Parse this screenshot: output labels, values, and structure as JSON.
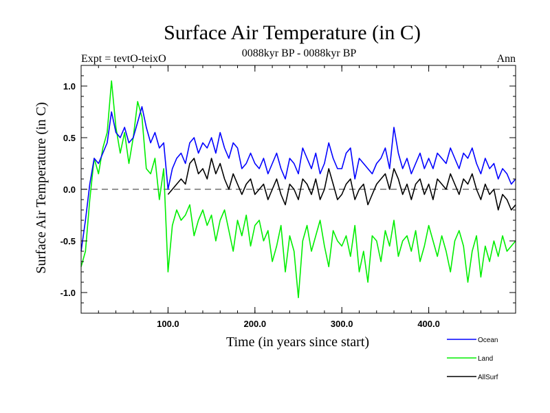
{
  "chart_data": {
    "type": "line",
    "title": "Surface Air Temperature (in C)",
    "subtitle": "0088kyr BP - 0088kyr BP",
    "expt_label": "Expt = tevtO-teixO",
    "period_label": "Ann",
    "xlabel": "Time (in years since start)",
    "ylabel": "Surface Air Temperature (in C)",
    "xlim": [
      0,
      500
    ],
    "ylim": [
      -1.2,
      1.2
    ],
    "x_ticks": [
      100,
      200,
      300,
      400
    ],
    "x_tick_labels": [
      "100.0",
      "200.0",
      "300.0",
      "400.0"
    ],
    "y_ticks": [
      -1.0,
      -0.5,
      0.0,
      0.5,
      1.0
    ],
    "y_tick_labels": [
      "-1.0",
      "-0.5",
      "0.0",
      "0.5",
      "1.0"
    ],
    "zero_line": "dashed",
    "grid": false,
    "legend_position": "bottom-right",
    "series": [
      {
        "name": "Ocean",
        "color": "#0000ff",
        "x": [
          0,
          5,
          10,
          15,
          20,
          25,
          30,
          35,
          40,
          45,
          50,
          55,
          60,
          65,
          70,
          75,
          80,
          85,
          90,
          95,
          100,
          105,
          110,
          115,
          120,
          125,
          130,
          135,
          140,
          145,
          150,
          155,
          160,
          165,
          170,
          175,
          180,
          185,
          190,
          195,
          200,
          205,
          210,
          215,
          220,
          225,
          230,
          235,
          240,
          245,
          250,
          255,
          260,
          265,
          270,
          275,
          280,
          285,
          290,
          295,
          300,
          305,
          310,
          315,
          320,
          325,
          330,
          335,
          340,
          345,
          350,
          355,
          360,
          365,
          370,
          375,
          380,
          385,
          390,
          395,
          400,
          405,
          410,
          415,
          420,
          425,
          430,
          435,
          440,
          445,
          450,
          455,
          460,
          465,
          470,
          475,
          480,
          485,
          490,
          495,
          500
        ],
        "values": [
          -0.6,
          -0.3,
          0.05,
          0.3,
          0.25,
          0.35,
          0.45,
          0.75,
          0.55,
          0.5,
          0.6,
          0.45,
          0.5,
          0.65,
          0.8,
          0.6,
          0.45,
          0.55,
          0.4,
          0.45,
          0.0,
          0.2,
          0.3,
          0.35,
          0.25,
          0.45,
          0.5,
          0.35,
          0.45,
          0.4,
          0.5,
          0.35,
          0.55,
          0.4,
          0.3,
          0.45,
          0.4,
          0.2,
          0.25,
          0.35,
          0.25,
          0.2,
          0.3,
          0.15,
          0.25,
          0.35,
          0.2,
          0.1,
          0.3,
          0.25,
          0.15,
          0.4,
          0.3,
          0.2,
          0.35,
          0.15,
          0.25,
          0.45,
          0.3,
          0.2,
          0.2,
          0.35,
          0.4,
          0.1,
          0.3,
          0.25,
          0.2,
          0.15,
          0.25,
          0.3,
          0.4,
          0.2,
          0.6,
          0.35,
          0.2,
          0.3,
          0.15,
          0.25,
          0.35,
          0.2,
          0.3,
          0.2,
          0.35,
          0.3,
          0.25,
          0.4,
          0.3,
          0.2,
          0.35,
          0.3,
          0.4,
          0.25,
          0.15,
          0.3,
          0.2,
          0.25,
          0.1,
          0.2,
          0.15,
          0.05,
          0.1
        ]
      },
      {
        "name": "Land",
        "color": "#00ee00",
        "x": [
          0,
          5,
          10,
          15,
          20,
          25,
          30,
          35,
          40,
          45,
          50,
          55,
          60,
          65,
          70,
          75,
          80,
          85,
          90,
          95,
          100,
          105,
          110,
          115,
          120,
          125,
          130,
          135,
          140,
          145,
          150,
          155,
          160,
          165,
          170,
          175,
          180,
          185,
          190,
          195,
          200,
          205,
          210,
          215,
          220,
          225,
          230,
          235,
          240,
          245,
          250,
          255,
          260,
          265,
          270,
          275,
          280,
          285,
          290,
          295,
          300,
          305,
          310,
          315,
          320,
          325,
          330,
          335,
          340,
          345,
          350,
          355,
          360,
          365,
          370,
          375,
          380,
          385,
          390,
          395,
          400,
          405,
          410,
          415,
          420,
          425,
          430,
          435,
          440,
          445,
          450,
          455,
          460,
          465,
          470,
          475,
          480,
          485,
          490,
          495,
          500
        ],
        "values": [
          -0.75,
          -0.6,
          -0.1,
          0.3,
          0.15,
          0.4,
          0.55,
          1.05,
          0.6,
          0.35,
          0.55,
          0.25,
          0.5,
          0.85,
          0.7,
          0.2,
          0.15,
          0.3,
          -0.1,
          0.2,
          -0.8,
          -0.35,
          -0.2,
          -0.3,
          -0.25,
          -0.15,
          -0.45,
          -0.3,
          -0.2,
          -0.35,
          -0.25,
          -0.5,
          -0.3,
          -0.2,
          -0.4,
          -0.6,
          -0.3,
          -0.45,
          -0.25,
          -0.55,
          -0.35,
          -0.3,
          -0.5,
          -0.4,
          -0.7,
          -0.55,
          -0.35,
          -0.8,
          -0.45,
          -0.6,
          -1.05,
          -0.5,
          -0.35,
          -0.6,
          -0.45,
          -0.3,
          -0.55,
          -0.75,
          -0.4,
          -0.5,
          -0.55,
          -0.45,
          -0.65,
          -0.35,
          -0.8,
          -0.6,
          -0.9,
          -0.45,
          -0.5,
          -0.7,
          -0.4,
          -0.55,
          -0.3,
          -0.65,
          -0.5,
          -0.45,
          -0.6,
          -0.4,
          -0.7,
          -0.55,
          -0.35,
          -0.5,
          -0.65,
          -0.45,
          -0.6,
          -0.8,
          -0.5,
          -0.4,
          -0.55,
          -0.9,
          -0.6,
          -0.45,
          -0.85,
          -0.55,
          -0.7,
          -0.5,
          -0.65,
          -0.45,
          -0.6,
          -0.55,
          -0.5
        ]
      },
      {
        "name": "AllSurf",
        "color": "#000000",
        "x": [
          100,
          105,
          110,
          115,
          120,
          125,
          130,
          135,
          140,
          145,
          150,
          155,
          160,
          165,
          170,
          175,
          180,
          185,
          190,
          195,
          200,
          205,
          210,
          215,
          220,
          225,
          230,
          235,
          240,
          245,
          250,
          255,
          260,
          265,
          270,
          275,
          280,
          285,
          290,
          295,
          300,
          305,
          310,
          315,
          320,
          325,
          330,
          335,
          340,
          345,
          350,
          355,
          360,
          365,
          370,
          375,
          380,
          385,
          390,
          395,
          400,
          405,
          410,
          415,
          420,
          425,
          430,
          435,
          440,
          445,
          450,
          455,
          460,
          465,
          470,
          475,
          480,
          485,
          490,
          495,
          500
        ],
        "values": [
          -0.05,
          0.0,
          0.05,
          0.1,
          0.05,
          0.25,
          0.3,
          0.15,
          0.2,
          0.1,
          0.3,
          0.15,
          0.25,
          0.1,
          0.0,
          0.15,
          0.05,
          -0.05,
          0.05,
          0.1,
          -0.05,
          0.0,
          0.05,
          -0.1,
          0.0,
          0.1,
          -0.05,
          -0.15,
          0.05,
          0.0,
          -0.1,
          0.1,
          0.05,
          -0.05,
          0.1,
          -0.1,
          0.0,
          0.2,
          0.05,
          -0.1,
          -0.05,
          0.05,
          0.1,
          -0.1,
          0.0,
          0.05,
          -0.15,
          -0.05,
          0.05,
          0.1,
          0.15,
          0.0,
          0.2,
          0.1,
          -0.05,
          0.05,
          -0.1,
          0.05,
          0.1,
          -0.05,
          0.05,
          -0.1,
          0.1,
          0.05,
          0.0,
          0.15,
          0.05,
          -0.05,
          0.1,
          0.05,
          0.15,
          0.0,
          -0.1,
          0.05,
          -0.05,
          0.0,
          -0.2,
          -0.05,
          -0.1,
          -0.2,
          -0.15
        ]
      }
    ]
  }
}
